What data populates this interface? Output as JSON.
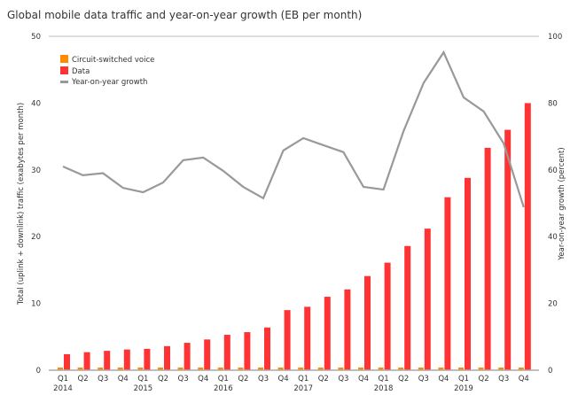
{
  "chart_data": {
    "type": "bar",
    "title": "Global mobile data traffic and year-on-year growth (EB per month)",
    "categories": [
      "Q1",
      "Q2",
      "Q3",
      "Q4",
      "Q1",
      "Q2",
      "Q3",
      "Q4",
      "Q1",
      "Q2",
      "Q3",
      "Q4",
      "Q1",
      "Q2",
      "Q3",
      "Q4",
      "Q1",
      "Q2",
      "Q3",
      "Q4",
      "Q1",
      "Q2",
      "Q3",
      "Q4"
    ],
    "years": [
      "2014",
      "2015",
      "2016",
      "2017",
      "2018",
      "2019"
    ],
    "ylabel": "Total (uplink + downlink) traffic (exabytes per month)",
    "y2label": "Year-on-year growth (percent)",
    "ylim": [
      0,
      50
    ],
    "y2lim": [
      0,
      100
    ],
    "yticks": [
      "0",
      "10",
      "20",
      "30",
      "40",
      "50"
    ],
    "y2ticks": [
      "0",
      "20",
      "40",
      "60",
      "80",
      "100"
    ],
    "legend_position": "top-left",
    "series": [
      {
        "name": "Circuit-switched voice",
        "type": "bar",
        "axis": "left",
        "color": "#ff8c00",
        "values": [
          0.4,
          0.4,
          0.4,
          0.4,
          0.4,
          0.4,
          0.4,
          0.4,
          0.4,
          0.4,
          0.4,
          0.4,
          0.4,
          0.4,
          0.4,
          0.4,
          0.4,
          0.4,
          0.4,
          0.4,
          0.4,
          0.4,
          0.4,
          0.4
        ]
      },
      {
        "name": "Data",
        "type": "bar",
        "axis": "left",
        "color": "#ff3333",
        "values": [
          2.4,
          2.7,
          2.9,
          3.1,
          3.2,
          3.6,
          4.1,
          4.6,
          5.3,
          5.7,
          6.4,
          9.0,
          9.5,
          11.0,
          12.1,
          14.1,
          16.1,
          18.6,
          21.2,
          25.9,
          28.8,
          33.3,
          36.0,
          40.0
        ]
      },
      {
        "name": "Year-on-year growth",
        "type": "line",
        "axis": "right",
        "color": "#999999",
        "values": [
          61,
          58.4,
          59,
          54.6,
          53.3,
          56.2,
          62.9,
          63.7,
          59.7,
          54.9,
          51.5,
          65.8,
          69.5,
          67.4,
          65.3,
          54.9,
          54.1,
          71.6,
          86,
          95.2,
          81.7,
          77.5,
          67.9,
          48.8
        ]
      }
    ]
  }
}
